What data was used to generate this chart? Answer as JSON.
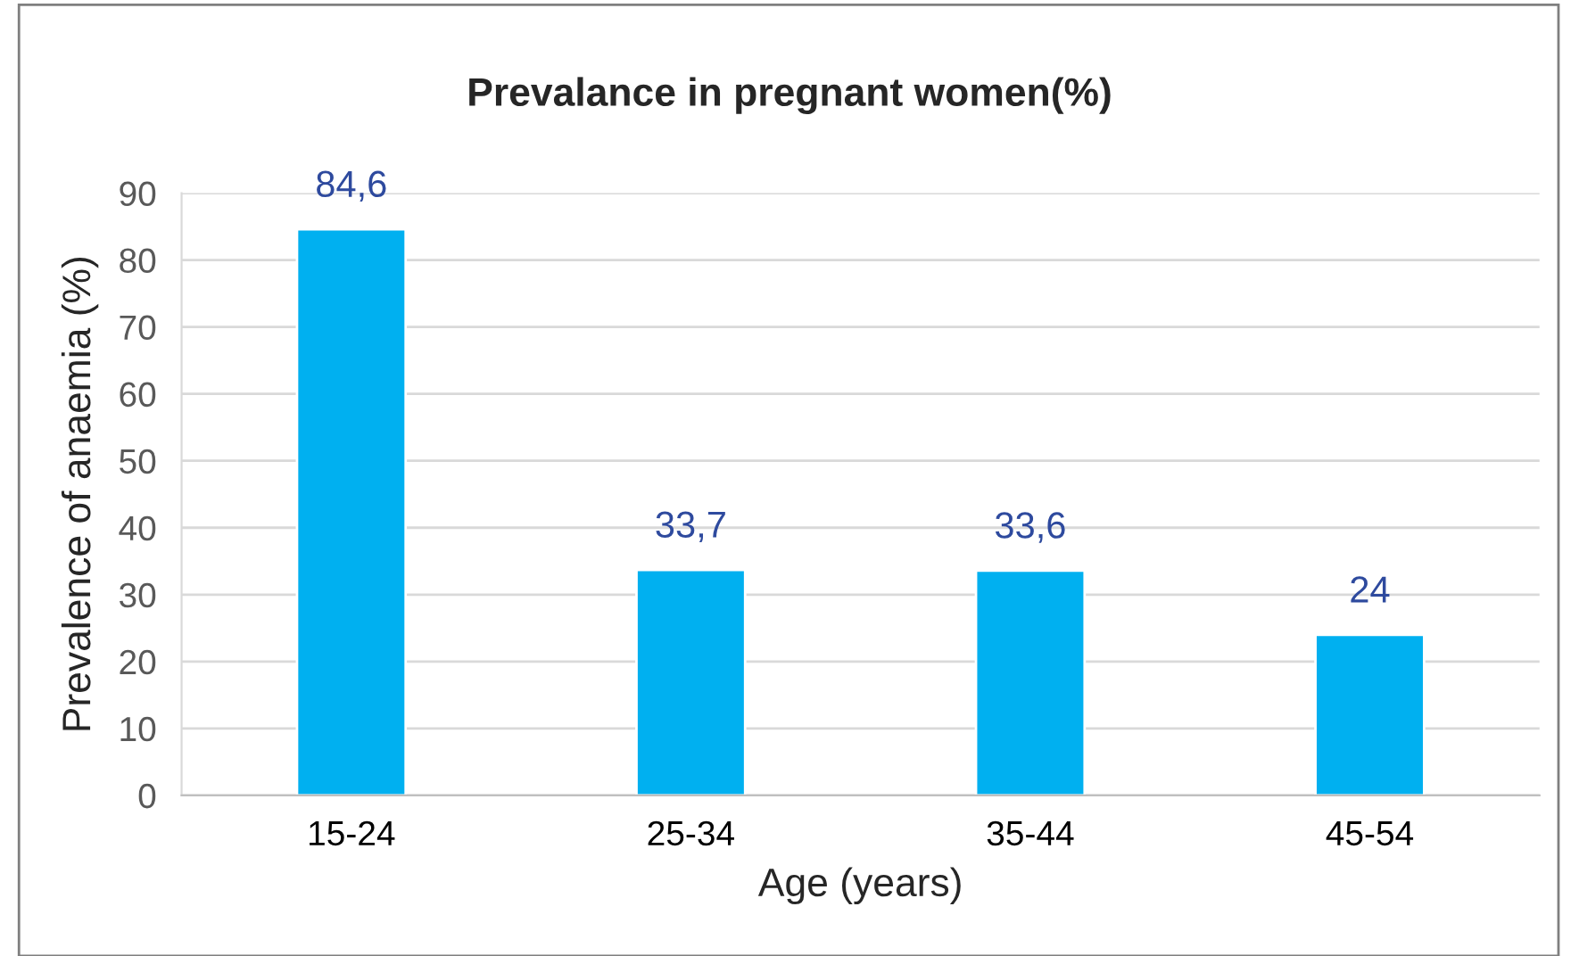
{
  "chart_data": {
    "type": "bar",
    "title": "Prevalance in pregnant women(%)",
    "xlabel": "Age (years)",
    "ylabel": "Prevalence of anaemia (%)",
    "categories": [
      "15-24",
      "25-34",
      "35-44",
      "45-54"
    ],
    "values": [
      84.6,
      33.7,
      33.6,
      24
    ],
    "value_labels": [
      "84,6",
      "33,7",
      "33,6",
      "24"
    ],
    "color": "#00b0f0",
    "ylim": [
      0,
      90
    ],
    "yticks": [
      0,
      10,
      20,
      30,
      40,
      50,
      60,
      70,
      80,
      90
    ],
    "grid": "y",
    "legend": false
  }
}
